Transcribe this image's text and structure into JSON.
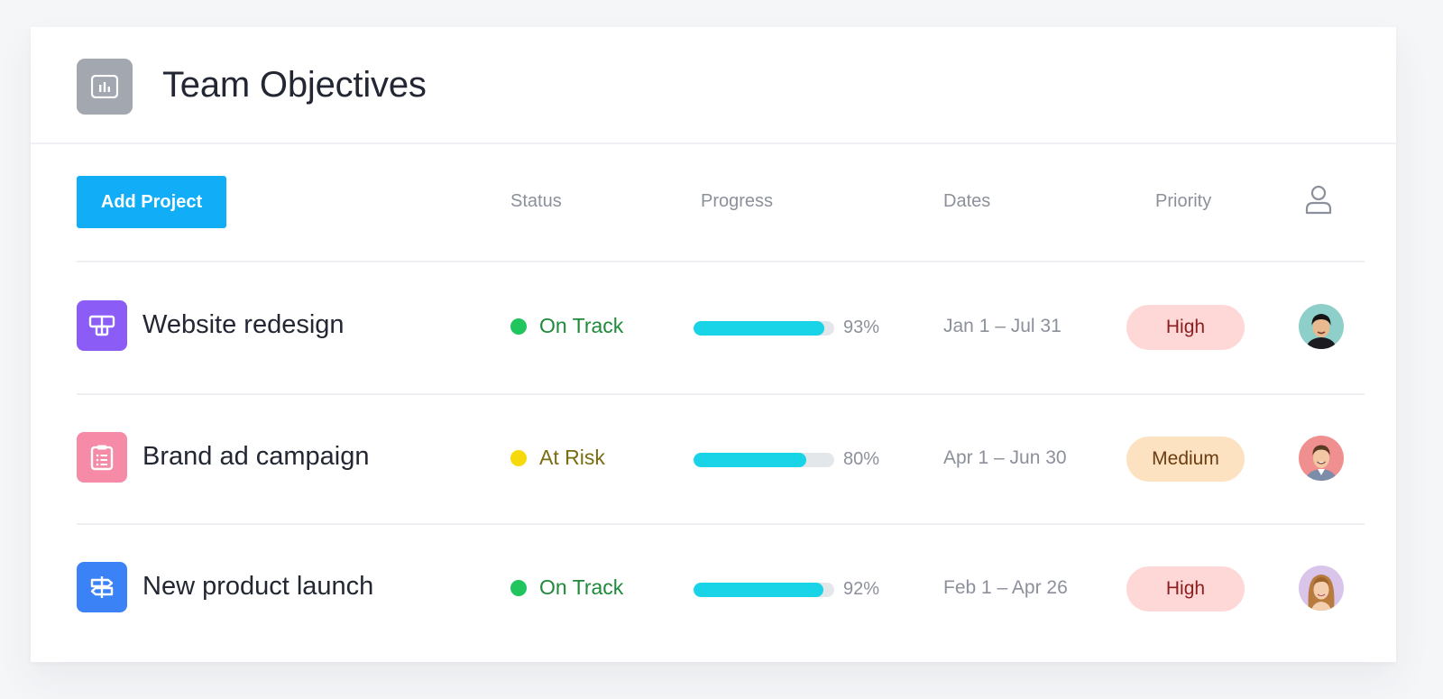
{
  "header": {
    "title": "Team Objectives",
    "icon": "bar-chart-icon",
    "icon_bg": "#a3a8b0"
  },
  "toolbar": {
    "add_label": "Add Project",
    "accent": "#11aef7"
  },
  "columns": {
    "status": "Status",
    "progress": "Progress",
    "dates": "Dates",
    "priority": "Priority",
    "assignee_icon": "person-icon"
  },
  "projects": [
    {
      "name": "Website redesign",
      "icon": "layout-icon",
      "icon_color": "#8b5cf6",
      "status": "On Track",
      "status_color": "#21c55d",
      "status_text_color": "#1e8a3a",
      "progress": 93,
      "progress_label": "93%",
      "dates": "Jan 1 – Jul 31",
      "priority": "High",
      "priority_bg": "#fdd8d6",
      "priority_color": "#8a1d1d",
      "avatar": "avatar-man-1"
    },
    {
      "name": "Brand ad campaign",
      "icon": "clipboard-icon",
      "icon_color": "#f58ba7",
      "status": "At Risk",
      "status_color": "#f5d90a",
      "status_text_color": "#7a6d12",
      "progress": 80,
      "progress_label": "80%",
      "dates": "Apr 1 – Jun 30",
      "priority": "Medium",
      "priority_bg": "#fde2c2",
      "priority_color": "#6b3c10",
      "avatar": "avatar-man-2"
    },
    {
      "name": "New product launch",
      "icon": "signpost-icon",
      "icon_color": "#3b82f6",
      "status": "On Track",
      "status_color": "#21c55d",
      "status_text_color": "#1e8a3a",
      "progress": 92,
      "progress_label": "92%",
      "dates": "Feb 1 – Apr 26",
      "priority": "High",
      "priority_bg": "#fdd8d6",
      "priority_color": "#8a1d1d",
      "avatar": "avatar-woman-1"
    }
  ]
}
